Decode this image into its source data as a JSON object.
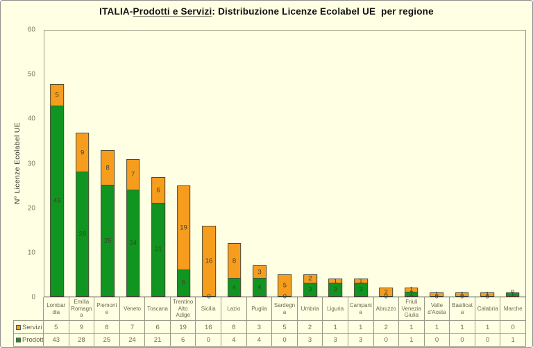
{
  "title": {
    "part1": "ITALIA-",
    "part2": "Prodotti e Servizi",
    "part3": ": Distribuzione Licenze Ecolabel UE  per regione"
  },
  "chart_data": {
    "type": "bar",
    "stacked": true,
    "title": "ITALIA-Prodotti e Servizi: Distribuzione Licenze Ecolabel UE per regione",
    "xlabel": "",
    "ylabel": "N° Licenze Ecolabel UE",
    "ylim": [
      0,
      60
    ],
    "yticks": [
      0,
      10,
      20,
      30,
      40,
      50,
      60
    ],
    "grid": false,
    "legend_position": "data-table-left",
    "categories": [
      "Lombardia",
      "Emilia Romagna",
      "Piemonte",
      "Veneto",
      "Toscana",
      "Trentino Alto Adige",
      "Sicilia",
      "Lazio",
      "Puglia",
      "Sardegna",
      "Umbria",
      "Liguria",
      "Campania",
      "Abruzzo",
      "Friuli Venezia Giulia",
      "Valle d'Aosta",
      "Basilicata",
      "Calabria",
      "Marche"
    ],
    "category_label_lines": [
      [
        "Lombar",
        "dia"
      ],
      [
        "Emilia",
        "Romagn",
        "a"
      ],
      [
        "Piemont",
        "e"
      ],
      [
        "Veneto"
      ],
      [
        "Toscana"
      ],
      [
        "Trentino",
        "Alto",
        "Adige"
      ],
      [
        "Sicilia"
      ],
      [
        "Lazio"
      ],
      [
        "Puglia"
      ],
      [
        "Sardegn",
        "a"
      ],
      [
        "Umbria"
      ],
      [
        "Liguria"
      ],
      [
        "Campani",
        "a"
      ],
      [
        "Abruzzo"
      ],
      [
        "Friuli",
        "Venezia",
        "Giulia"
      ],
      [
        "Valle",
        "d'Aosta"
      ],
      [
        "Basilicat",
        "a"
      ],
      [
        "Calabria"
      ],
      [
        "Marche"
      ]
    ],
    "series": [
      {
        "name": "Servizi",
        "color": "#F79D1E",
        "values": [
          5,
          9,
          8,
          7,
          6,
          19,
          16,
          8,
          3,
          5,
          2,
          1,
          1,
          2,
          1,
          1,
          1,
          1,
          0
        ]
      },
      {
        "name": "Prodotti",
        "color": "#109620",
        "values": [
          43,
          28,
          25,
          24,
          21,
          6,
          0,
          4,
          4,
          0,
          3,
          3,
          3,
          0,
          1,
          0,
          0,
          0,
          1
        ]
      }
    ]
  },
  "colors": {
    "background": "#FFFFE3",
    "servizi_orange": "#F79D1E",
    "prodotti_green": "#109620",
    "table_line": "#999988",
    "text_olive": "#6A6A52"
  }
}
